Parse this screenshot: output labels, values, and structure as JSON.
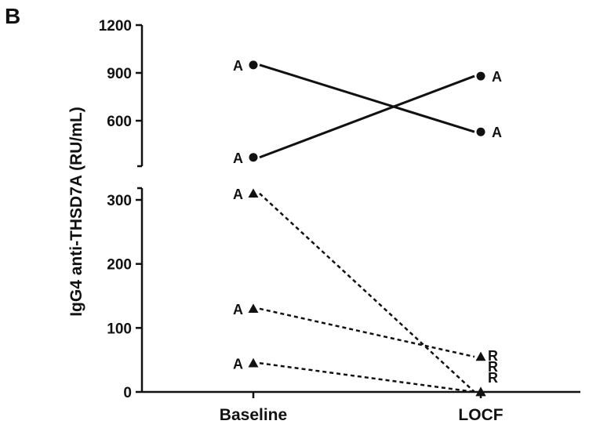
{
  "panel_label": "B",
  "chart_data": {
    "type": "line",
    "ylabel": "IgG4 anti-THSD7A (RU/mL)",
    "xlabel": "",
    "categories": [
      "Baseline",
      "LOCF"
    ],
    "y_axis_segments": [
      {
        "name": "lower",
        "ylim": [
          0,
          320
        ],
        "ticks": [
          "0",
          "100",
          "200",
          "300"
        ]
      },
      {
        "name": "upper",
        "ylim": [
          300,
          1200
        ],
        "ticks": [
          "600",
          "900",
          "1200"
        ]
      }
    ],
    "series": [
      {
        "marker": "circle",
        "line": "solid",
        "values": [
          950,
          530
        ],
        "labels": [
          "A",
          "A"
        ]
      },
      {
        "marker": "circle",
        "line": "solid",
        "values": [
          370,
          880
        ],
        "labels": [
          "A",
          "A"
        ]
      },
      {
        "marker": "triangle",
        "line": "dashed",
        "values": [
          310,
          0
        ],
        "labels": [
          "A",
          "R"
        ]
      },
      {
        "marker": "triangle",
        "line": "dashed",
        "values": [
          130,
          55
        ],
        "labels": [
          "A",
          "R"
        ]
      },
      {
        "marker": "triangle",
        "line": "dashed",
        "values": [
          45,
          0
        ],
        "labels": [
          "A",
          "R"
        ]
      }
    ]
  },
  "colors": {
    "ink": "#111111",
    "background": "#ffffff"
  }
}
